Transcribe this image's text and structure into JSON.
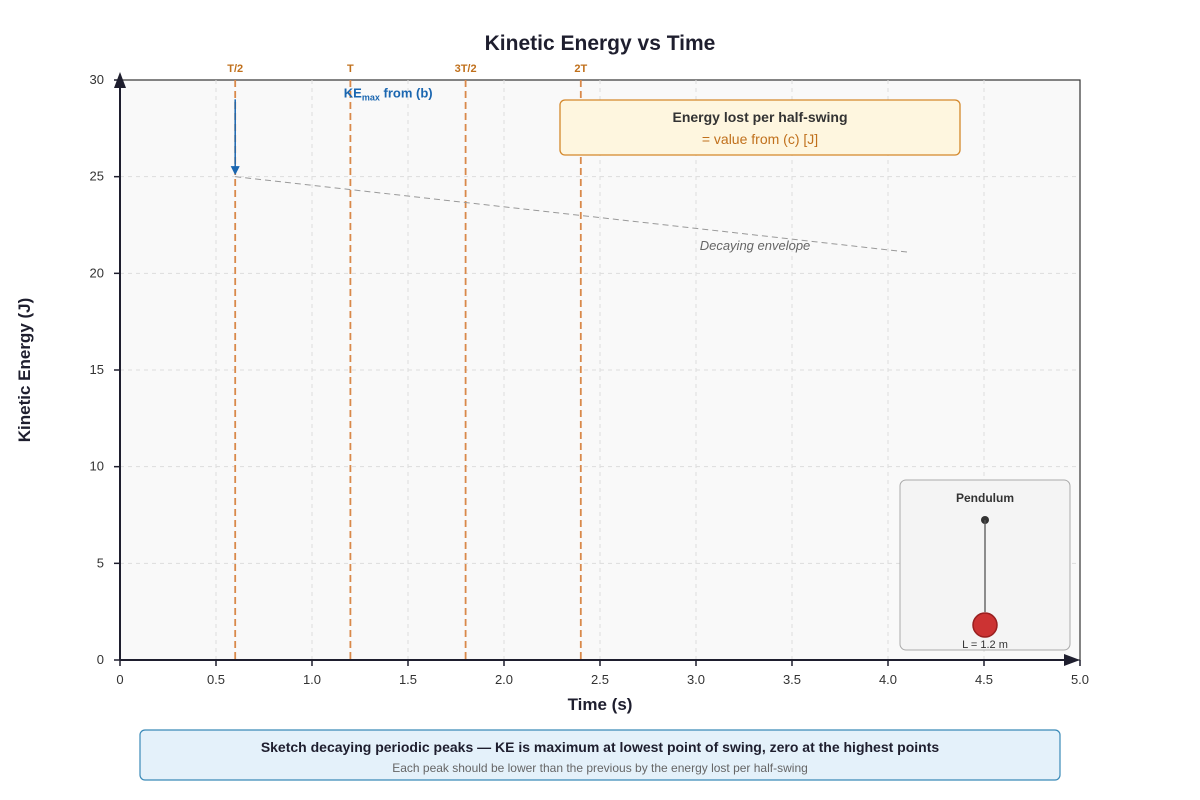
{
  "chart_data": {
    "type": "line",
    "title": "Kinetic Energy vs Time",
    "xlabel": "Time (s)",
    "ylabel": "Kinetic Energy (J)",
    "xlim": [
      0,
      5.0
    ],
    "ylim": [
      0,
      30
    ],
    "x_ticks": [
      "0",
      "0.5",
      "1.0",
      "1.5",
      "2.0",
      "2.5",
      "3.0",
      "3.5",
      "4.0",
      "4.5",
      "5.0"
    ],
    "y_ticks": [
      "0",
      "5",
      "10",
      "15",
      "20",
      "25",
      "30"
    ],
    "grid": true,
    "period_markers": [
      {
        "label": "T/2",
        "x": 0.6
      },
      {
        "label": "T",
        "x": 1.2
      },
      {
        "label": "3T/2",
        "x": 1.8
      },
      {
        "label": "2T",
        "x": 2.4
      }
    ],
    "ke_max_annotation": {
      "main": "KE",
      "sub": "max",
      "rest": " from (b)",
      "x": 0.6,
      "y_from": 29,
      "y_to": 25
    },
    "envelope": {
      "label": "Decaying envelope",
      "points": [
        [
          0.6,
          25
        ],
        [
          4.1,
          21.1
        ]
      ]
    },
    "energy_box": {
      "title": "Energy lost per half-swing",
      "value": "= value from (c) [J]"
    },
    "pendulum_inset": {
      "title": "Pendulum",
      "length_label": "L = 1.2 m"
    },
    "footer": {
      "main": "Sketch decaying periodic peaks — KE is maximum at lowest point of swing, zero at the highest points",
      "sub": "Each peak should be lower than the previous by the energy lost per half-swing"
    }
  },
  "colors": {
    "axis": "#1e1e2e",
    "marker": "#d9894a",
    "ke_arrow": "#1a66b0",
    "envelope": "#999999",
    "box_fill": "#fef6df",
    "box_stroke": "#d4882a",
    "footer_fill": "#e4f1fa",
    "footer_stroke": "#3a8ab8",
    "bob": "#cc3333"
  }
}
